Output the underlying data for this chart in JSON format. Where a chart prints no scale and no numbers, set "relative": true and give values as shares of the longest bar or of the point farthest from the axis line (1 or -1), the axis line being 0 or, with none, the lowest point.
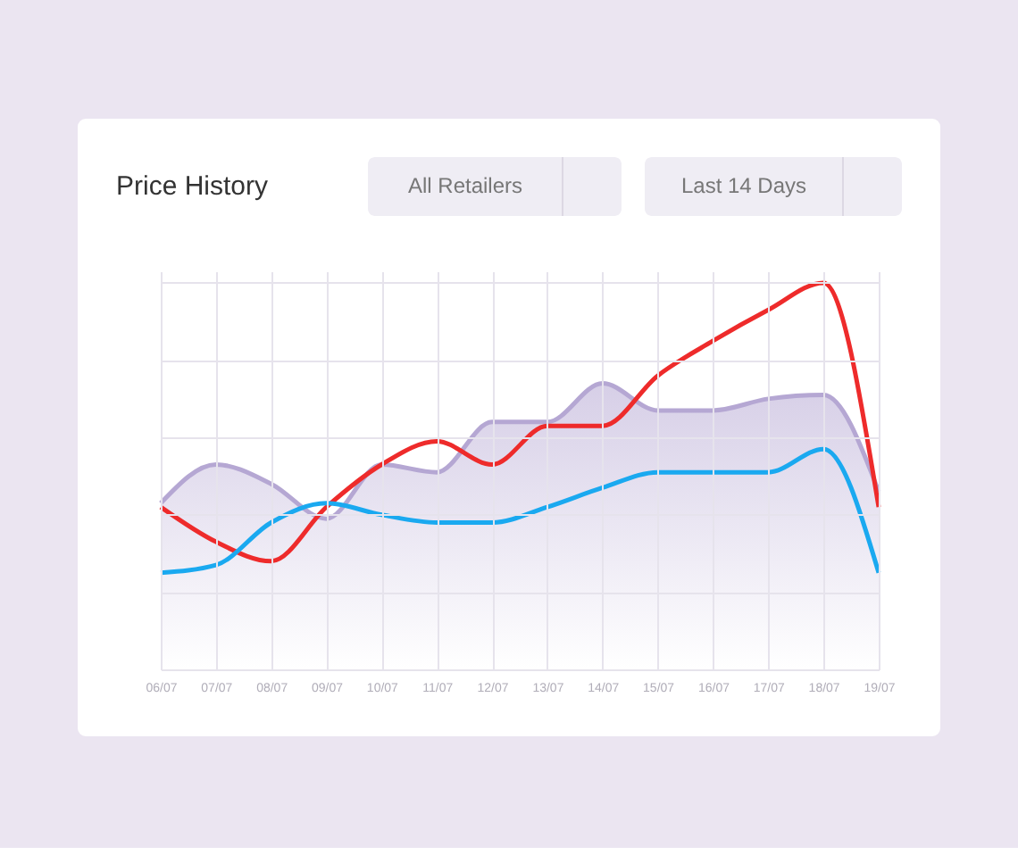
{
  "chart_data": {
    "type": "line",
    "title": "Price History",
    "annotations": [
      "All Retailers",
      "Last 14 Days"
    ],
    "categories": [
      "06/07",
      "07/07",
      "08/07",
      "09/07",
      "10/07",
      "11/07",
      "12/07",
      "13/07",
      "14/07",
      "15/07",
      "16/07",
      "17/07",
      "18/07",
      "19/07"
    ],
    "relative": true,
    "grid": true,
    "series": [
      {
        "type": "area",
        "color": "#b5a7d3",
        "values": [
          0.43,
          0.53,
          0.48,
          0.39,
          0.53,
          0.51,
          0.64,
          0.64,
          0.74,
          0.67,
          0.67,
          0.7,
          0.71,
          0.46
        ]
      },
      {
        "color": "#ee2b2b",
        "values": [
          0.42,
          0.33,
          0.28,
          0.42,
          0.53,
          0.59,
          0.53,
          0.63,
          0.63,
          0.76,
          0.85,
          0.93,
          1.0,
          0.42
        ]
      },
      {
        "color": "#1aa9f0",
        "values": [
          0.25,
          0.27,
          0.38,
          0.43,
          0.4,
          0.38,
          0.38,
          0.42,
          0.47,
          0.51,
          0.51,
          0.51,
          0.57,
          0.25
        ]
      }
    ]
  }
}
